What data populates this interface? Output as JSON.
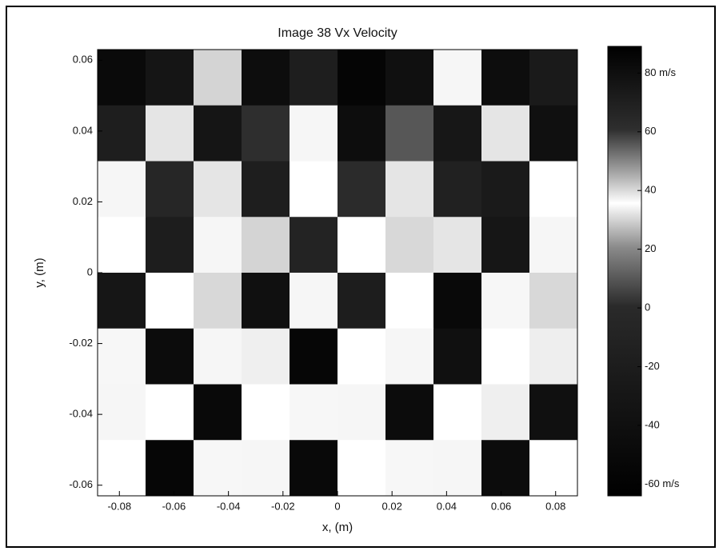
{
  "chart_data": {
    "type": "heatmap",
    "title": "Image 38 Vx Velocity",
    "x_label": "x, (m)",
    "y_label": "y, (m)",
    "xlim": [
      -0.088,
      0.088
    ],
    "xticks": [
      -0.08,
      -0.06,
      -0.04,
      -0.02,
      0,
      0.02,
      0.04,
      0.06,
      0.08
    ],
    "ylim": [
      -0.063,
      0.063
    ],
    "yticks": [
      -0.06,
      -0.04,
      -0.02,
      0,
      0.02,
      0.04,
      0.06
    ],
    "clim": [
      -64,
      88
    ],
    "cticks": [
      {
        "value": -60,
        "label": "-60 m/s"
      },
      -40,
      -20,
      0,
      20,
      40,
      60,
      {
        "value": 80,
        "label": "80 m/s"
      }
    ],
    "colormap": [
      {
        "value": -64,
        "color": "#000000"
      },
      {
        "value": 0,
        "color": "#2a2a2a"
      },
      {
        "value": 20,
        "color": "#8a8a8a"
      },
      {
        "value": 35,
        "color": "#ffffff"
      },
      {
        "value": 45,
        "color": "#a8a8a8"
      },
      {
        "value": 60,
        "color": "#2e2e2e"
      },
      {
        "value": 88,
        "color": "#000000"
      }
    ],
    "z": [
      [
        82,
        75,
        40,
        80,
        70,
        85,
        78,
        36,
        80,
        72
      ],
      [
        70,
        38,
        75,
        60,
        36,
        80,
        55,
        74,
        38,
        78
      ],
      [
        36,
        65,
        38,
        70,
        35,
        62,
        38,
        68,
        72,
        35
      ],
      [
        35,
        -20,
        36,
        40,
        -10,
        35,
        30,
        38,
        -30,
        36
      ],
      [
        -30,
        35,
        30,
        -40,
        36,
        -20,
        35,
        -50,
        34,
        30
      ],
      [
        34,
        -45,
        36,
        33,
        -55,
        35,
        36,
        -40,
        35,
        37
      ],
      [
        36,
        35,
        -50,
        35,
        34,
        36,
        -45,
        35,
        33,
        -40
      ],
      [
        35,
        -55,
        34,
        36,
        -50,
        35,
        34,
        36,
        -45,
        35
      ]
    ]
  }
}
